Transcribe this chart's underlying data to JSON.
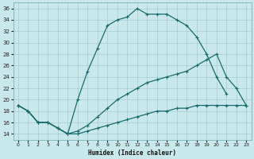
{
  "xlabel": "Humidex (Indice chaleur)",
  "bg_color": "#c8e8ec",
  "grid_color": "#a8ccd0",
  "line_color": "#1a6b6b",
  "xlim": [
    -0.5,
    23.5
  ],
  "ylim": [
    13,
    37
  ],
  "yticks": [
    14,
    16,
    18,
    20,
    22,
    24,
    26,
    28,
    30,
    32,
    34,
    36
  ],
  "xticks": [
    0,
    1,
    2,
    3,
    4,
    5,
    6,
    7,
    8,
    9,
    10,
    11,
    12,
    13,
    14,
    15,
    16,
    17,
    18,
    19,
    20,
    21,
    22,
    23
  ],
  "line_top_x": [
    0,
    1,
    2,
    3,
    4,
    5,
    6,
    7,
    8,
    9,
    10,
    11,
    12,
    13,
    14,
    15,
    16,
    17,
    18,
    19,
    20,
    21
  ],
  "line_top_y": [
    19,
    18,
    16,
    16,
    15,
    14,
    20,
    25,
    29,
    33,
    34,
    34.5,
    36,
    35,
    35,
    35,
    34,
    33,
    31,
    28,
    24,
    21
  ],
  "line_mid_x": [
    0,
    1,
    2,
    3,
    4,
    5,
    6,
    7,
    8,
    9,
    10,
    11,
    12,
    13,
    14,
    15,
    16,
    17,
    18,
    19,
    20,
    21,
    22,
    23
  ],
  "line_mid_y": [
    19,
    18,
    16,
    16,
    15,
    14,
    14.5,
    15.5,
    17,
    18.5,
    20,
    21,
    22,
    23,
    23.5,
    24,
    24.5,
    25,
    26,
    27,
    28,
    24,
    22,
    19
  ],
  "line_bot_x": [
    0,
    1,
    2,
    3,
    4,
    5,
    6,
    7,
    8,
    9,
    10,
    11,
    12,
    13,
    14,
    15,
    16,
    17,
    18,
    19,
    20,
    21,
    22,
    23
  ],
  "line_bot_y": [
    19,
    18,
    16,
    16,
    15,
    14,
    14,
    14.5,
    15,
    15.5,
    16,
    16.5,
    17,
    17.5,
    18,
    18,
    18.5,
    18.5,
    19,
    19,
    19,
    19,
    19,
    19
  ]
}
